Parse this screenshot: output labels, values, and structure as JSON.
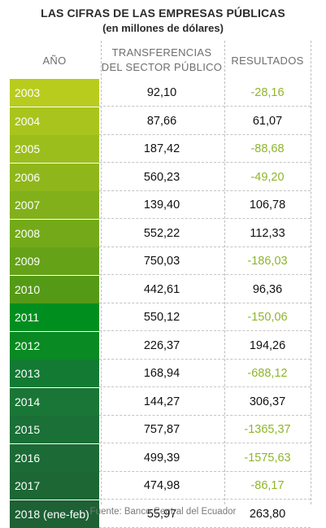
{
  "title": "LAS CIFRAS DE LAS EMPRESAS PÚBLICAS",
  "subtitle": "(en millones de dólares)",
  "headers": {
    "year": "AÑO",
    "transfers_line1": "TRANSFERENCIAS",
    "transfers_line2": "DEL SECTOR PÚBLICO",
    "results": "RESULTADOS"
  },
  "source": "Fuente: Banco Central del Ecuador",
  "colors": {
    "negative_text": "#8fb52c",
    "year_gradient": [
      "#b8cc1e",
      "#a9c41d",
      "#9cbe1c",
      "#8fb71b",
      "#82b01a",
      "#74aa19",
      "#65a218",
      "#559a17",
      "#008f1e",
      "#0a8a22",
      "#137a34",
      "#1a7636",
      "#1a7036",
      "#1c6b36",
      "#1c6734",
      "#1e6135"
    ]
  },
  "chart_data": {
    "type": "table",
    "title": "LAS CIFRAS DE LAS EMPRESAS PÚBLICAS",
    "subtitle": "(en millones de dólares)",
    "columns": [
      "AÑO",
      "TRANSFERENCIAS DEL SECTOR PÚBLICO",
      "RESULTADOS"
    ],
    "rows": [
      {
        "year": "2003",
        "transfers": "92,10",
        "results": "-28,16"
      },
      {
        "year": "2004",
        "transfers": "87,66",
        "results": "61,07"
      },
      {
        "year": "2005",
        "transfers": "187,42",
        "results": "-88,68"
      },
      {
        "year": "2006",
        "transfers": "560,23",
        "results": "-49,20"
      },
      {
        "year": "2007",
        "transfers": "139,40",
        "results": "106,78"
      },
      {
        "year": "2008",
        "transfers": "552,22",
        "results": "112,33"
      },
      {
        "year": "2009",
        "transfers": "750,03",
        "results": "-186,03"
      },
      {
        "year": "2010",
        "transfers": "442,61",
        "results": "96,36"
      },
      {
        "year": "2011",
        "transfers": "550,12",
        "results": "-150,06"
      },
      {
        "year": "2012",
        "transfers": "226,37",
        "results": "194,26"
      },
      {
        "year": "2013",
        "transfers": "168,94",
        "results": "-688,12"
      },
      {
        "year": "2014",
        "transfers": "144,27",
        "results": "306,37"
      },
      {
        "year": "2015",
        "transfers": "757,87",
        "results": "-1365,37"
      },
      {
        "year": "2016",
        "transfers": "499,39",
        "results": "-1575,63"
      },
      {
        "year": "2017",
        "transfers": "474,98",
        "results": "-86,17"
      },
      {
        "year": "2018 (ene-feb)",
        "transfers": "55,97",
        "results": "263,80"
      }
    ]
  }
}
